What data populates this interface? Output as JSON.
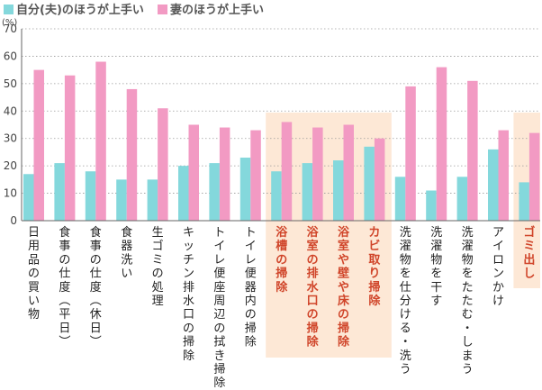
{
  "chart_data": {
    "type": "bar",
    "unit_label": "(%)",
    "y_ticks": [
      "0",
      "10",
      "20",
      "30",
      "40",
      "50",
      "60",
      "70"
    ],
    "ylim": [
      0,
      70
    ],
    "grid": true,
    "legend_position": "top-left",
    "colors": {
      "series1": "#84d8dc",
      "series2": "#f29ac3",
      "highlight_bg": "#fde8d6",
      "highlight_text": "#d0452a"
    },
    "series": [
      {
        "name": "自分(夫)のほうが上手い",
        "values": [
          17,
          21,
          18,
          15,
          15,
          20,
          21,
          23,
          18,
          21,
          22,
          27,
          16,
          11,
          16,
          26,
          14
        ]
      },
      {
        "name": "妻のほうが上手い",
        "values": [
          55,
          53,
          58,
          48,
          41,
          35,
          34,
          33,
          36,
          34,
          35,
          30,
          49,
          56,
          51,
          33,
          32
        ]
      }
    ],
    "categories": [
      "日用品の買い物",
      "食事の仕度(平日)",
      "食事の仕度(休日)",
      "食器洗い",
      "生ゴミの処理",
      "キッチン排水口の掃除",
      "トイレ便座周辺の拭き掃除",
      "トイレ便器内の掃除",
      "浴槽の掃除",
      "浴室の排水口の掃除",
      "浴室や壁や床の掃除",
      "カビ取り掃除",
      "洗濯物を仕分ける・洗う",
      "洗濯物を干す",
      "洗濯物をたたむ・しまう",
      "アイロンかけ",
      "ゴミ出し"
    ],
    "highlighted_categories": [
      8,
      9,
      10,
      11,
      16
    ]
  }
}
